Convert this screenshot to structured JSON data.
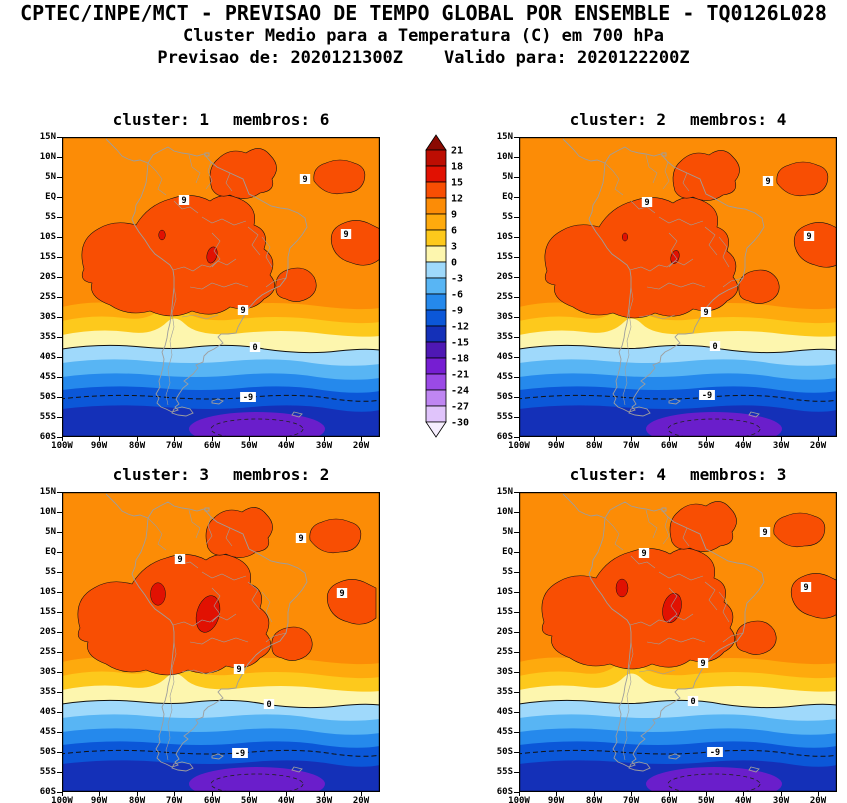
{
  "header": {
    "line1": "CPTEC/INPE/MCT - PREVISAO DE TEMPO GLOBAL POR ENSEMBLE - TQ0126L028",
    "line2": "Cluster Medio para a Temperatura (C) em 700 hPa",
    "line3": "Previsao de: 2020121300Z    Valido para: 2020122200Z"
  },
  "panel_labels": {
    "cluster": "cluster:",
    "membros": "membros:"
  },
  "panels": [
    {
      "cluster": "1",
      "membros": "6"
    },
    {
      "cluster": "2",
      "membros": "4"
    },
    {
      "cluster": "3",
      "membros": "2"
    },
    {
      "cluster": "4",
      "membros": "3"
    }
  ],
  "axes": {
    "lat": [
      "15N",
      "10N",
      "5N",
      "EQ",
      "5S",
      "10S",
      "15S",
      "20S",
      "25S",
      "30S",
      "35S",
      "40S",
      "45S",
      "50S",
      "55S",
      "60S"
    ],
    "lon": [
      "100W",
      "90W",
      "80W",
      "70W",
      "60W",
      "50W",
      "40W",
      "30W",
      "20W"
    ]
  },
  "colorbar": {
    "labels": [
      "21",
      "18",
      "15",
      "12",
      "9",
      "6",
      "3",
      "0",
      "-3",
      "-6",
      "-9",
      "-12",
      "-15",
      "-18",
      "-21",
      "-24",
      "-27",
      "-30"
    ],
    "colors": [
      "#8a0a02",
      "#bd0d02",
      "#e11102",
      "#f84e03",
      "#fc8c06",
      "#feaa0d",
      "#fdc91c",
      "#fdf6ae",
      "#9fd9fb",
      "#58b5f4",
      "#2589ec",
      "#0b57d8",
      "#1430b8",
      "#4e18b4",
      "#761ed2",
      "#9b4ae6",
      "#bf86f2",
      "#e0c4fb",
      "#f6eefe"
    ]
  },
  "map_labels": {
    "nine": "9",
    "zero": "0",
    "minus9": "-9"
  },
  "map_colors": {
    "background": "#fc8c06",
    "blob": "#f84e03",
    "hot_spot": "#e11102",
    "bands": [
      "#feaa0d",
      "#fdc91c",
      "#fdf6ae",
      "#9fd9fb",
      "#58b5f4",
      "#2589ec",
      "#0b57d8",
      "#1430b8"
    ],
    "cold_pool": "#6a1ecb",
    "coast": "#9e9e9e",
    "contour": "#111111"
  },
  "chart_data": {
    "type": "heatmap",
    "title": "CPTEC/INPE/MCT - PREVISAO DE TEMPO GLOBAL POR ENSEMBLE - TQ0126L028",
    "subtitle": "Cluster Medio para a Temperatura (C) em 700 hPa",
    "forecast_init": "2020121300Z",
    "forecast_valid": "2020122200Z",
    "variable": "Temperatura",
    "unit": "C",
    "level": "700 hPa",
    "panels": [
      {
        "cluster": 1,
        "membros": 6
      },
      {
        "cluster": 2,
        "membros": 4
      },
      {
        "cluster": 3,
        "membros": 2
      },
      {
        "cluster": 4,
        "membros": 3
      }
    ],
    "x_ticks": [
      "100W",
      "90W",
      "80W",
      "70W",
      "60W",
      "50W",
      "40W",
      "30W",
      "20W"
    ],
    "y_ticks": [
      "15N",
      "10N",
      "5N",
      "EQ",
      "5S",
      "10S",
      "15S",
      "20S",
      "25S",
      "30S",
      "35S",
      "40S",
      "45S",
      "50S",
      "55S",
      "60S"
    ],
    "contour_levels": [
      21,
      18,
      15,
      12,
      9,
      6,
      3,
      0,
      -3,
      -6,
      -9,
      -12,
      -15,
      -18,
      -21,
      -24,
      -27,
      -30
    ],
    "labeled_contours": [
      9,
      0,
      -9
    ],
    "legend_position": "between top panels",
    "grid": false
  }
}
